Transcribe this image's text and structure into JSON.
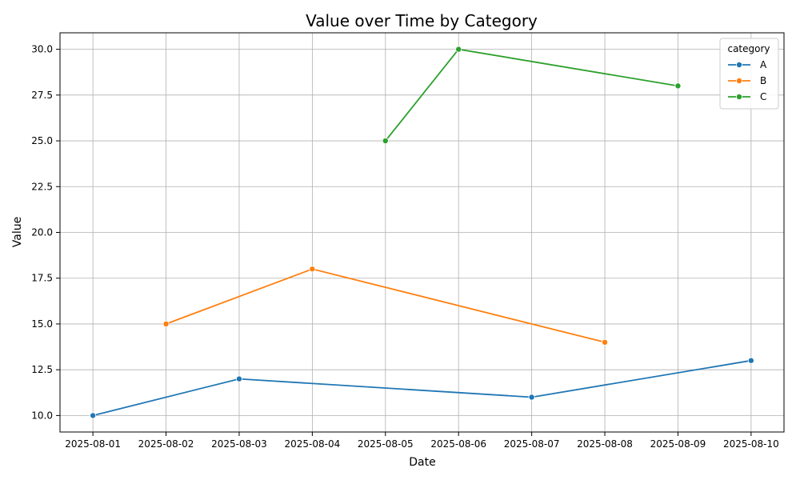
{
  "chart_data": {
    "type": "line",
    "title": "Value over Time by Category",
    "xlabel": "Date",
    "ylabel": "Value",
    "x_ticks": [
      "2025-08-01",
      "2025-08-02",
      "2025-08-03",
      "2025-08-04",
      "2025-08-05",
      "2025-08-06",
      "2025-08-07",
      "2025-08-08",
      "2025-08-09",
      "2025-08-10"
    ],
    "y_ticks": [
      "10.0",
      "12.5",
      "15.0",
      "17.5",
      "20.0",
      "22.5",
      "25.0",
      "27.5",
      "30.0"
    ],
    "ylim": [
      9.1,
      30.9
    ],
    "xlim": [
      "2025-07-31",
      "2025-08-10"
    ],
    "grid": true,
    "legend": {
      "title": "category",
      "position": "top-right"
    },
    "series": [
      {
        "name": "A",
        "color": "#1f77b4",
        "points": [
          {
            "x": "2025-08-01",
            "y": 10
          },
          {
            "x": "2025-08-03",
            "y": 12
          },
          {
            "x": "2025-08-07",
            "y": 11
          },
          {
            "x": "2025-08-10",
            "y": 13
          }
        ]
      },
      {
        "name": "B",
        "color": "#ff7f0e",
        "points": [
          {
            "x": "2025-08-02",
            "y": 15
          },
          {
            "x": "2025-08-04",
            "y": 18
          },
          {
            "x": "2025-08-08",
            "y": 14
          }
        ]
      },
      {
        "name": "C",
        "color": "#2ca02c",
        "points": [
          {
            "x": "2025-08-05",
            "y": 25
          },
          {
            "x": "2025-08-06",
            "y": 30
          },
          {
            "x": "2025-08-09",
            "y": 28
          }
        ]
      }
    ]
  }
}
